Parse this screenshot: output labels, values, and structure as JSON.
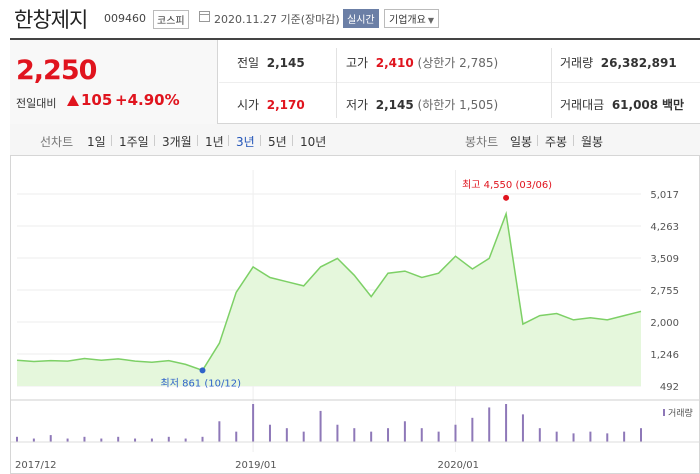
{
  "header": {
    "stock_name": "한창제지",
    "stock_code": "009460",
    "market": "코스피",
    "date": "2020.11.27  기준(장마감)",
    "realtime_label": "실시간",
    "corp_overview_label": "기업개요"
  },
  "summary": {
    "price": "2,250",
    "change_label": "전일대비",
    "change": "105",
    "change_pct": "+4.90%",
    "prev_close_label": "전일",
    "prev_close": "2,145",
    "high_label": "고가",
    "high": "2,410",
    "upper_limit": "(상한가 2,785)",
    "volume_label": "거래량",
    "volume": "26,382,891",
    "open_label": "시가",
    "open": "2,170",
    "low_label": "저가",
    "low": "2,145",
    "lower_limit": "(하한가 1,505)",
    "amount_label": "거래대금",
    "amount": "61,008",
    "amount_unit": "백만"
  },
  "tabs": {
    "line_chart_label": "선차트",
    "periods": [
      "1일",
      "1주일",
      "3개월",
      "1년",
      "3년",
      "5년",
      "10년"
    ],
    "active_period": "3년",
    "candle_chart_label": "봉차트",
    "candle_periods": [
      "일봉",
      "주봉",
      "월봉"
    ]
  },
  "colors": {
    "up": "#e0141e",
    "line": "#7dd066",
    "volume": "#8e78b8",
    "active_tab": "#2254b8",
    "low_marker": "#2f63c9"
  },
  "chart_data": {
    "type": "area",
    "title": "",
    "ylim": [
      492,
      5017
    ],
    "yticks": [
      "5,017",
      "4,263",
      "3,509",
      "2,755",
      "2,000",
      "1,246",
      "492"
    ],
    "xticks": [
      "2017/12",
      "2019/01",
      "2020/01"
    ],
    "x": [
      "2017/12",
      "2018/01",
      "2018/02",
      "2018/03",
      "2018/04",
      "2018/05",
      "2018/06",
      "2018/07",
      "2018/08",
      "2018/09",
      "2018/10",
      "2018/10/12",
      "2018/11",
      "2018/12",
      "2019/01",
      "2019/02",
      "2019/03",
      "2019/04",
      "2019/05",
      "2019/06",
      "2019/07",
      "2019/08",
      "2019/09",
      "2019/10",
      "2019/11",
      "2019/12",
      "2020/01",
      "2020/02",
      "2020/03",
      "2020/03/06",
      "2020/04",
      "2020/05",
      "2020/06",
      "2020/07",
      "2020/08",
      "2020/09",
      "2020/10",
      "2020/11"
    ],
    "y": [
      1100,
      1070,
      1090,
      1080,
      1140,
      1100,
      1130,
      1080,
      1050,
      1090,
      1000,
      861,
      1500,
      2700,
      3300,
      3050,
      2950,
      2850,
      3300,
      3500,
      3100,
      2600,
      3150,
      3200,
      3050,
      3150,
      3550,
      3250,
      3500,
      4550,
      1950,
      2150,
      2200,
      2050,
      2100,
      2050,
      2150,
      2250
    ],
    "volume_label": "거래량",
    "volume": [
      3,
      2,
      4,
      2,
      3,
      2,
      3,
      2,
      2,
      3,
      2,
      3,
      12,
      6,
      22,
      10,
      8,
      6,
      18,
      10,
      8,
      6,
      8,
      12,
      8,
      6,
      10,
      14,
      20,
      22,
      16,
      8,
      6,
      5,
      6,
      5,
      6,
      8
    ],
    "high_annotation": "최고 4,550 (03/06)",
    "low_annotation": "최저 861 (10/12)",
    "grid": true
  }
}
